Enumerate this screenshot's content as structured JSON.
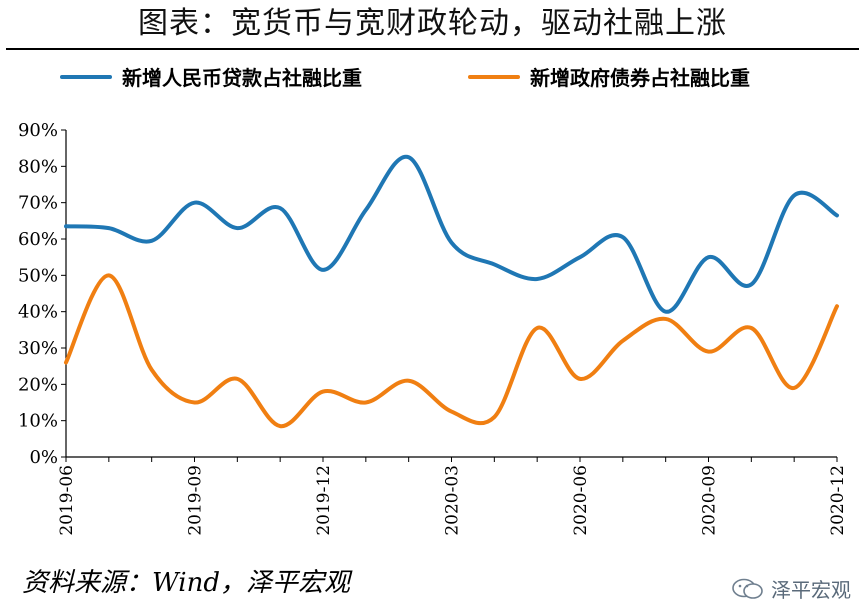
{
  "title": "图表：宽货币与宽财政轮动，驱动社融上涨",
  "source": "资料来源：Wind，泽平宏观",
  "watermark": "泽平宏观",
  "chart_data": {
    "type": "line",
    "x": [
      "2019-06",
      "2019-07",
      "2019-08",
      "2019-09",
      "2019-10",
      "2019-11",
      "2019-12",
      "2020-01",
      "2020-02",
      "2020-03",
      "2020-04",
      "2020-05",
      "2020-06",
      "2020-07",
      "2020-08",
      "2020-09",
      "2020-10",
      "2020-11",
      "2020-12"
    ],
    "xtick_labels": [
      "2019-06",
      "2019-09",
      "2019-12",
      "2020-03",
      "2020-06",
      "2020-09",
      "2020-12"
    ],
    "ylim": [
      0,
      90
    ],
    "yticks": [
      0,
      10,
      20,
      30,
      40,
      50,
      60,
      70,
      80,
      90
    ],
    "ytick_labels": [
      "0%",
      "10%",
      "20%",
      "30%",
      "40%",
      "50%",
      "60%",
      "70%",
      "80%",
      "90%"
    ],
    "series": [
      {
        "name": "新增人民币贷款占社融比重",
        "color": "#1f77b4",
        "values": [
          63.5,
          63,
          59.5,
          70,
          63,
          68.5,
          51.5,
          68,
          82.5,
          59,
          53,
          49,
          55,
          60.5,
          40,
          55,
          47.5,
          72,
          66.5
        ]
      },
      {
        "name": "新增政府债券占社融比重",
        "color": "#f07f12",
        "values": [
          26,
          50,
          24,
          15,
          21.5,
          8.5,
          18,
          15,
          21,
          12.5,
          11,
          35.5,
          21.5,
          32,
          38,
          29,
          35.5,
          19,
          41.5
        ]
      }
    ]
  }
}
